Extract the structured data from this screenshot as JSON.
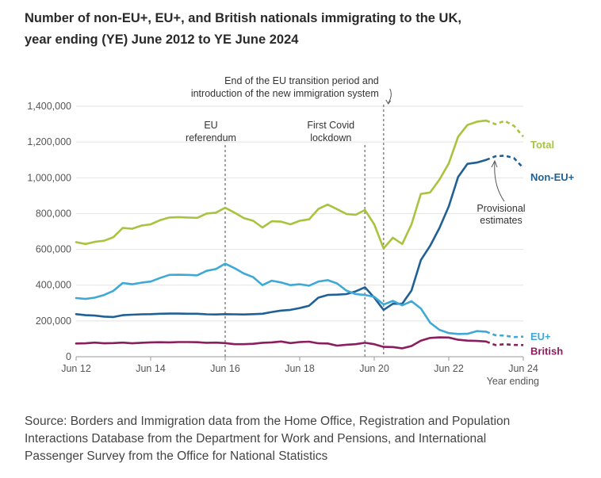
{
  "title_lines": [
    "Number of non-EU+, EU+, and British nationals immigrating to the UK,",
    "year ending (YE) June 2012 to YE June 2024"
  ],
  "source_lines": [
    "Source: Borders and Immigration data from the Home Office, Registration and Population",
    "Interactions Database from the Department for Work and Pensions, and International",
    "Passenger Survey from the Office for National Statistics"
  ],
  "colors": {
    "total": "#a8c43f",
    "non_eu": "#206095",
    "eu": "#3fa9d6",
    "british": "#8a1e5e",
    "grid": "#e2e2e2",
    "axis": "#9a9a9a",
    "vline": "#8c8c8c"
  },
  "chart_data": {
    "type": "line",
    "title": "Number of non-EU+, EU+, and British nationals immigrating to the UK, year ending (YE) June 2012 to YE June 2024",
    "xlabel": "Year ending",
    "ylabel": "",
    "x_ticks": [
      {
        "x": 2012.5,
        "label": "Jun 12"
      },
      {
        "x": 2014.5,
        "label": "Jun 14"
      },
      {
        "x": 2016.5,
        "label": "Jun 16"
      },
      {
        "x": 2018.5,
        "label": "Jun 18"
      },
      {
        "x": 2020.5,
        "label": "Jun 20"
      },
      {
        "x": 2022.5,
        "label": "Jun 22"
      },
      {
        "x": 2024.5,
        "label": "Jun 24"
      }
    ],
    "xlim": [
      2012.5,
      2024.5
    ],
    "ylim": [
      0,
      1400000
    ],
    "y_ticks": [
      {
        "v": 0,
        "label": "0"
      },
      {
        "v": 200000,
        "label": "200,000"
      },
      {
        "v": 400000,
        "label": "400,000"
      },
      {
        "v": 600000,
        "label": "600,000"
      },
      {
        "v": 800000,
        "label": "800,000"
      },
      {
        "v": 1000000,
        "label": "1,000,000"
      },
      {
        "v": 1200000,
        "label": "1,200,000"
      },
      {
        "v": 1400000,
        "label": "1,400,000"
      }
    ],
    "grid": true,
    "provisional_from_x": 2023.5,
    "series": [
      {
        "key": "total",
        "name": "Total",
        "color": "#a8c43f",
        "points": [
          [
            2012.5,
            640000
          ],
          [
            2012.75,
            630000
          ],
          [
            2013.0,
            642000
          ],
          [
            2013.25,
            648000
          ],
          [
            2013.5,
            668000
          ],
          [
            2013.75,
            720000
          ],
          [
            2014.0,
            715000
          ],
          [
            2014.25,
            733000
          ],
          [
            2014.5,
            740000
          ],
          [
            2014.75,
            763000
          ],
          [
            2015.0,
            778000
          ],
          [
            2015.25,
            780000
          ],
          [
            2015.5,
            778000
          ],
          [
            2015.75,
            776000
          ],
          [
            2016.0,
            800000
          ],
          [
            2016.25,
            805000
          ],
          [
            2016.5,
            833000
          ],
          [
            2016.75,
            805000
          ],
          [
            2017.0,
            775000
          ],
          [
            2017.25,
            760000
          ],
          [
            2017.5,
            722000
          ],
          [
            2017.75,
            757000
          ],
          [
            2018.0,
            755000
          ],
          [
            2018.25,
            740000
          ],
          [
            2018.5,
            760000
          ],
          [
            2018.75,
            768000
          ],
          [
            2019.0,
            826000
          ],
          [
            2019.25,
            850000
          ],
          [
            2019.5,
            825000
          ],
          [
            2019.75,
            798000
          ],
          [
            2020.0,
            793000
          ],
          [
            2020.25,
            820000
          ],
          [
            2020.5,
            740000
          ],
          [
            2020.75,
            605000
          ],
          [
            2021.0,
            665000
          ],
          [
            2021.25,
            630000
          ],
          [
            2021.5,
            740000
          ],
          [
            2021.75,
            910000
          ],
          [
            2022.0,
            918000
          ],
          [
            2022.25,
            990000
          ],
          [
            2022.5,
            1080000
          ],
          [
            2022.75,
            1230000
          ],
          [
            2023.0,
            1295000
          ],
          [
            2023.25,
            1313000
          ],
          [
            2023.5,
            1320000
          ],
          [
            2023.75,
            1300000
          ],
          [
            2024.0,
            1318000
          ],
          [
            2024.25,
            1290000
          ],
          [
            2024.5,
            1230000
          ]
        ],
        "legend": "Total"
      },
      {
        "key": "non_eu",
        "name": "Non-EU+",
        "color": "#206095",
        "points": [
          [
            2012.5,
            238000
          ],
          [
            2012.75,
            232000
          ],
          [
            2013.0,
            230000
          ],
          [
            2013.25,
            224000
          ],
          [
            2013.5,
            222000
          ],
          [
            2013.75,
            232000
          ],
          [
            2014.0,
            235000
          ],
          [
            2014.25,
            237000
          ],
          [
            2014.5,
            238000
          ],
          [
            2014.75,
            240000
          ],
          [
            2015.0,
            241000
          ],
          [
            2015.25,
            241000
          ],
          [
            2015.5,
            240000
          ],
          [
            2015.75,
            240000
          ],
          [
            2016.0,
            237000
          ],
          [
            2016.25,
            236000
          ],
          [
            2016.5,
            238000
          ],
          [
            2016.75,
            237000
          ],
          [
            2017.0,
            236000
          ],
          [
            2017.25,
            238000
          ],
          [
            2017.5,
            240000
          ],
          [
            2017.75,
            250000
          ],
          [
            2018.0,
            258000
          ],
          [
            2018.25,
            262000
          ],
          [
            2018.5,
            272000
          ],
          [
            2018.75,
            285000
          ],
          [
            2019.0,
            330000
          ],
          [
            2019.25,
            345000
          ],
          [
            2019.5,
            347000
          ],
          [
            2019.75,
            350000
          ],
          [
            2020.0,
            365000
          ],
          [
            2020.25,
            388000
          ],
          [
            2020.5,
            330000
          ],
          [
            2020.75,
            262000
          ],
          [
            2021.0,
            296000
          ],
          [
            2021.25,
            296000
          ],
          [
            2021.5,
            370000
          ],
          [
            2021.75,
            540000
          ],
          [
            2022.0,
            620000
          ],
          [
            2022.25,
            720000
          ],
          [
            2022.5,
            840000
          ],
          [
            2022.75,
            1005000
          ],
          [
            2023.0,
            1078000
          ],
          [
            2023.25,
            1085000
          ],
          [
            2023.5,
            1100000
          ],
          [
            2023.75,
            1120000
          ],
          [
            2024.0,
            1124000
          ],
          [
            2024.25,
            1110000
          ],
          [
            2024.5,
            1055000
          ]
        ],
        "legend": "Non-EU+"
      },
      {
        "key": "eu",
        "name": "EU+",
        "color": "#3fa9d6",
        "points": [
          [
            2012.5,
            328000
          ],
          [
            2012.75,
            323000
          ],
          [
            2013.0,
            330000
          ],
          [
            2013.25,
            345000
          ],
          [
            2013.5,
            368000
          ],
          [
            2013.75,
            412000
          ],
          [
            2014.0,
            405000
          ],
          [
            2014.25,
            414000
          ],
          [
            2014.5,
            420000
          ],
          [
            2014.75,
            440000
          ],
          [
            2015.0,
            457000
          ],
          [
            2015.25,
            458000
          ],
          [
            2015.5,
            457000
          ],
          [
            2015.75,
            455000
          ],
          [
            2016.0,
            480000
          ],
          [
            2016.25,
            490000
          ],
          [
            2016.5,
            520000
          ],
          [
            2016.75,
            495000
          ],
          [
            2017.0,
            465000
          ],
          [
            2017.25,
            445000
          ],
          [
            2017.5,
            400000
          ],
          [
            2017.75,
            425000
          ],
          [
            2018.0,
            415000
          ],
          [
            2018.25,
            400000
          ],
          [
            2018.5,
            405000
          ],
          [
            2018.75,
            397000
          ],
          [
            2019.0,
            420000
          ],
          [
            2019.25,
            428000
          ],
          [
            2019.5,
            410000
          ],
          [
            2019.75,
            370000
          ],
          [
            2020.0,
            350000
          ],
          [
            2020.25,
            345000
          ],
          [
            2020.5,
            335000
          ],
          [
            2020.75,
            292000
          ],
          [
            2021.0,
            312000
          ],
          [
            2021.25,
            287000
          ],
          [
            2021.5,
            310000
          ],
          [
            2021.75,
            270000
          ],
          [
            2022.0,
            190000
          ],
          [
            2022.25,
            150000
          ],
          [
            2022.5,
            132000
          ],
          [
            2022.75,
            127000
          ],
          [
            2023.0,
            128000
          ],
          [
            2023.25,
            143000
          ],
          [
            2023.5,
            140000
          ],
          [
            2023.75,
            120000
          ],
          [
            2024.0,
            118000
          ],
          [
            2024.25,
            110000
          ],
          [
            2024.5,
            112000
          ]
        ],
        "legend": "EU+"
      },
      {
        "key": "british",
        "name": "British",
        "color": "#8a1e5e",
        "points": [
          [
            2012.5,
            74000
          ],
          [
            2012.75,
            75000
          ],
          [
            2013.0,
            79000
          ],
          [
            2013.25,
            75000
          ],
          [
            2013.5,
            76000
          ],
          [
            2013.75,
            79000
          ],
          [
            2014.0,
            75000
          ],
          [
            2014.25,
            78000
          ],
          [
            2014.5,
            80000
          ],
          [
            2014.75,
            81000
          ],
          [
            2015.0,
            80000
          ],
          [
            2015.25,
            82000
          ],
          [
            2015.5,
            82000
          ],
          [
            2015.75,
            81000
          ],
          [
            2016.0,
            78000
          ],
          [
            2016.25,
            79000
          ],
          [
            2016.5,
            76000
          ],
          [
            2016.75,
            70000
          ],
          [
            2017.0,
            70000
          ],
          [
            2017.25,
            72000
          ],
          [
            2017.5,
            78000
          ],
          [
            2017.75,
            80000
          ],
          [
            2018.0,
            85000
          ],
          [
            2018.25,
            76000
          ],
          [
            2018.5,
            82000
          ],
          [
            2018.75,
            84000
          ],
          [
            2019.0,
            75000
          ],
          [
            2019.25,
            74000
          ],
          [
            2019.5,
            62000
          ],
          [
            2019.75,
            67000
          ],
          [
            2020.0,
            70000
          ],
          [
            2020.25,
            78000
          ],
          [
            2020.5,
            70000
          ],
          [
            2020.75,
            55000
          ],
          [
            2021.0,
            54000
          ],
          [
            2021.25,
            47000
          ],
          [
            2021.5,
            60000
          ],
          [
            2021.75,
            90000
          ],
          [
            2022.0,
            105000
          ],
          [
            2022.25,
            108000
          ],
          [
            2022.5,
            107000
          ],
          [
            2022.75,
            95000
          ],
          [
            2023.0,
            90000
          ],
          [
            2023.25,
            88000
          ],
          [
            2023.5,
            85000
          ],
          [
            2023.75,
            65000
          ],
          [
            2024.0,
            70000
          ],
          [
            2024.25,
            66000
          ],
          [
            2024.5,
            65000
          ]
        ],
        "legend": "British"
      }
    ],
    "vertical_markers": [
      {
        "x": 2016.5,
        "lines": [
          "EU",
          "referendum"
        ]
      },
      {
        "x": 2020.25,
        "lines": [
          "First Covid",
          "lockdown"
        ]
      },
      {
        "x": 2020.75,
        "lines": [
          "End of the EU transition period and",
          "introduction of the new immigration system"
        ]
      }
    ],
    "annotations": [
      {
        "text_lines": [
          "Provisional",
          "estimates"
        ]
      }
    ]
  }
}
